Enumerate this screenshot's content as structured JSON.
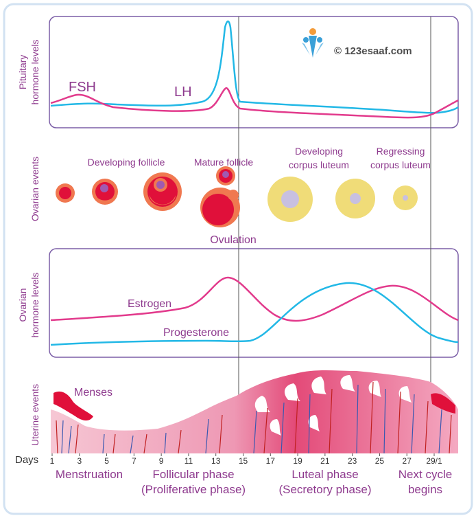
{
  "watermark": {
    "text": "© 123esaaf.com"
  },
  "pituitary": {
    "axis_label_1": "Pituitary",
    "axis_label_2": "hormone levels",
    "fsh_label": "FSH",
    "lh_label": "LH"
  },
  "ovarian_events": {
    "axis_label": "Ovarian events",
    "developing_follicle": "Developing follicle",
    "mature_follicle": "Mature follicle",
    "developing_cl_1": "Developing",
    "developing_cl_2": "corpus luteum",
    "regressing_cl_1": "Regressing",
    "regressing_cl_2": "corpus luteum",
    "ovulation": "Ovulation"
  },
  "ovarian_hormones": {
    "axis_label_1": "Ovarian",
    "axis_label_2": "hormone levels",
    "estrogen_label": "Estrogen",
    "progesterone_label": "Progesterone"
  },
  "uterine": {
    "axis_label": "Uterine events",
    "menses_label": "Menses"
  },
  "days": {
    "title": "Days",
    "ticks": [
      "1",
      "3",
      "5",
      "7",
      "9",
      "11",
      "13",
      "15",
      "17",
      "19",
      "21",
      "23",
      "25",
      "27",
      "29/1"
    ]
  },
  "phases": {
    "menstruation": "Menstruation",
    "follicular_1": "Follicular phase",
    "follicular_2": "(Proliferative phase)",
    "luteal_1": "Luteal phase",
    "luteal_2": "(Secretory phase)",
    "next_1": "Next cycle",
    "next_2": "begins"
  },
  "colors": {
    "frame": "#7b5ea7",
    "pink": "#e23a8c",
    "cyan": "#22b8e6",
    "label_purple": "#8e3a8e",
    "follicle_red": "#e0103a",
    "follicle_orange": "#f07850",
    "luteum_yellow": "#f0dc78",
    "luteum_core": "#c8c0e0"
  }
}
